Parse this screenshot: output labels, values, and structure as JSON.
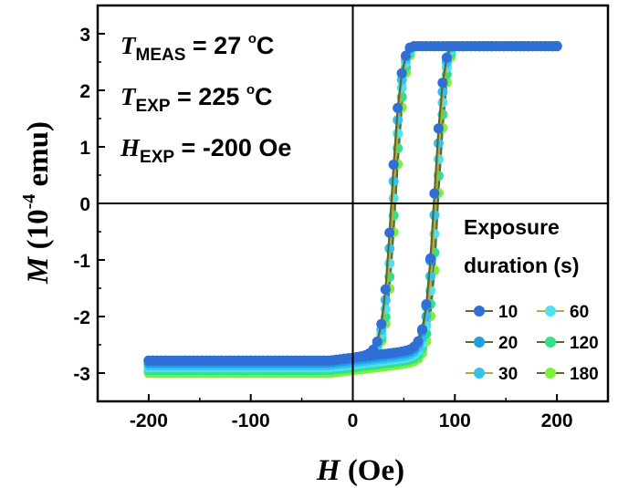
{
  "chart_data": {
    "type": "line",
    "title": "",
    "xlabel": {
      "symbol": "H",
      "unit": "(Oe)"
    },
    "ylabel": {
      "symbol": "M",
      "unit_pre": "(10",
      "unit_exp": "-4",
      "unit_post": " emu)"
    },
    "xlim": [
      -250,
      250
    ],
    "ylim": [
      -3.5,
      3.5
    ],
    "xticks": [
      -200,
      -100,
      0,
      100,
      200
    ],
    "xtick_labels": [
      "-200",
      "-100",
      "0",
      "100",
      "200"
    ],
    "yticks": [
      -3,
      -2,
      -1,
      0,
      1,
      2,
      3
    ],
    "ytick_labels": [
      "-3",
      "-2",
      "-1",
      "0",
      "1",
      "2",
      "3"
    ],
    "annotations": [
      {
        "sym": "T",
        "sub": "MEAS",
        "rest_pre": " = 27 ",
        "sup": "o",
        "rest_post": "C"
      },
      {
        "sym": "T",
        "sub": "EXP",
        "rest_pre": " = 225 ",
        "sup": "o",
        "rest_post": "C"
      },
      {
        "sym": "H",
        "sub": "EXP",
        "rest_pre": " = -200 Oe",
        "sup": "",
        "rest_post": ""
      }
    ],
    "legend": {
      "title_line1": "Exposure",
      "title_line2": "duration (s)",
      "placement": "lower-right"
    },
    "series": [
      {
        "name": "10",
        "color": "#2f6fd6",
        "line_color": "#556b2f",
        "rise_coercivity": 80,
        "fall_coercivity": 38,
        "saturation": 2.78,
        "low_branch_offset": 0.0
      },
      {
        "name": "20",
        "color": "#1e9fe6",
        "line_color": "#556b2f",
        "rise_coercivity": 80,
        "fall_coercivity": 38,
        "saturation": 2.78,
        "low_branch_offset": 0.04
      },
      {
        "name": "30",
        "color": "#33c2ee",
        "line_color": "#b8a93a",
        "rise_coercivity": 81,
        "fall_coercivity": 39,
        "saturation": 2.78,
        "low_branch_offset": 0.08
      },
      {
        "name": "60",
        "color": "#4fe0f2",
        "line_color": "#b8a93a",
        "rise_coercivity": 82,
        "fall_coercivity": 40,
        "saturation": 2.78,
        "low_branch_offset": 0.12
      },
      {
        "name": "120",
        "color": "#33e08a",
        "line_color": "#556b2f",
        "rise_coercivity": 83,
        "fall_coercivity": 41,
        "saturation": 2.78,
        "low_branch_offset": 0.17
      },
      {
        "name": "180",
        "color": "#7ef03a",
        "line_color": "#556b2f",
        "rise_coercivity": 84,
        "fall_coercivity": 42,
        "saturation": 2.78,
        "low_branch_offset": 0.22
      }
    ]
  }
}
